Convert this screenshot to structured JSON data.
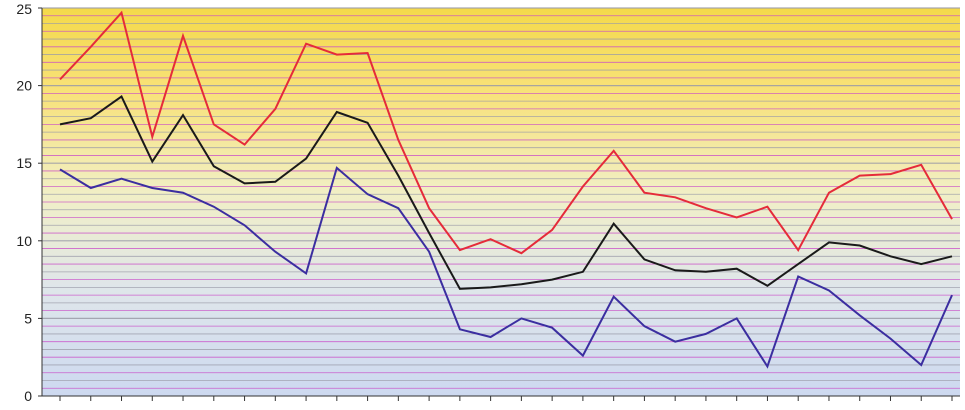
{
  "chart_data": {
    "type": "line",
    "title": "",
    "xlabel": "",
    "ylabel": "",
    "ylim": [
      0,
      25
    ],
    "yticks": [
      0,
      5,
      10,
      15,
      20,
      25
    ],
    "grid": true,
    "legend": "none",
    "x": [
      1,
      2,
      3,
      4,
      5,
      6,
      7,
      8,
      9,
      10,
      11,
      12,
      13,
      14,
      15,
      16,
      17,
      18,
      19,
      20,
      21,
      22,
      23,
      24,
      25,
      26,
      27,
      28,
      29,
      30
    ],
    "series": [
      {
        "color": "#e52b3a",
        "values": [
          20.4,
          22.5,
          24.7,
          16.7,
          23.2,
          17.5,
          16.2,
          18.5,
          22.7,
          22.0,
          22.1,
          16.5,
          12.1,
          9.4,
          10.1,
          9.2,
          10.7,
          13.5,
          15.8,
          13.1,
          12.8,
          12.1,
          11.5,
          12.2,
          9.4,
          13.1,
          14.2,
          14.3,
          14.9,
          11.4
        ]
      },
      {
        "color": "#1a1a1a",
        "values": [
          17.5,
          17.9,
          19.3,
          15.1,
          18.1,
          14.8,
          13.7,
          13.8,
          15.3,
          18.3,
          17.6,
          14.2,
          10.5,
          6.9,
          7.0,
          7.2,
          7.5,
          8.0,
          11.1,
          8.8,
          8.1,
          8.0,
          8.2,
          7.1,
          8.5,
          9.9,
          9.7,
          9.0,
          8.5,
          9.0
        ]
      },
      {
        "color": "#3b2ea0",
        "values": [
          14.6,
          13.4,
          14.0,
          13.4,
          13.1,
          12.2,
          11.0,
          9.3,
          7.9,
          14.7,
          13.0,
          12.1,
          9.3,
          4.3,
          3.8,
          5.0,
          4.4,
          2.6,
          6.4,
          4.5,
          3.5,
          4.0,
          5.0,
          1.9,
          7.7,
          6.8,
          5.2,
          3.7,
          2.0,
          6.5
        ]
      }
    ]
  }
}
